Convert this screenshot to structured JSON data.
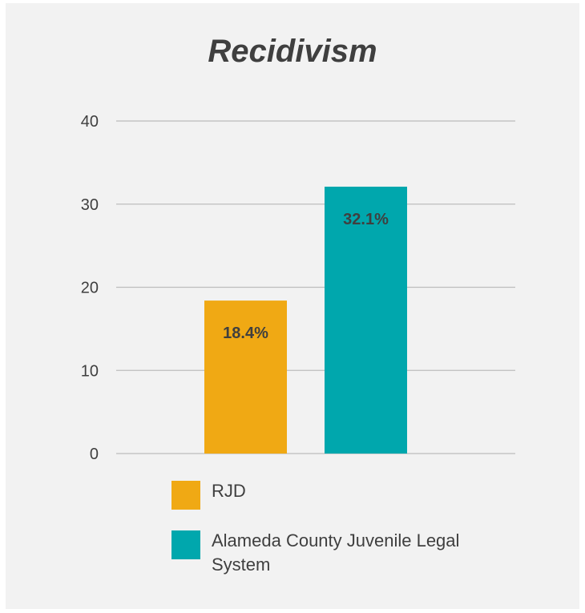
{
  "chart_data": {
    "type": "bar",
    "title": "Recidivism",
    "categories": [
      "RJD",
      "Alameda County Juvenile Legal System"
    ],
    "values": [
      18.4,
      32.1
    ],
    "data_labels": [
      "18.4%",
      "32.1%"
    ],
    "colors": [
      "#f0a914",
      "#00a7ad"
    ],
    "yticks": [
      "0",
      "10",
      "20",
      "30",
      "40"
    ],
    "ylim": [
      0,
      40
    ],
    "grid": true,
    "legend_position": "bottom-left",
    "xlabel": "",
    "ylabel": ""
  }
}
